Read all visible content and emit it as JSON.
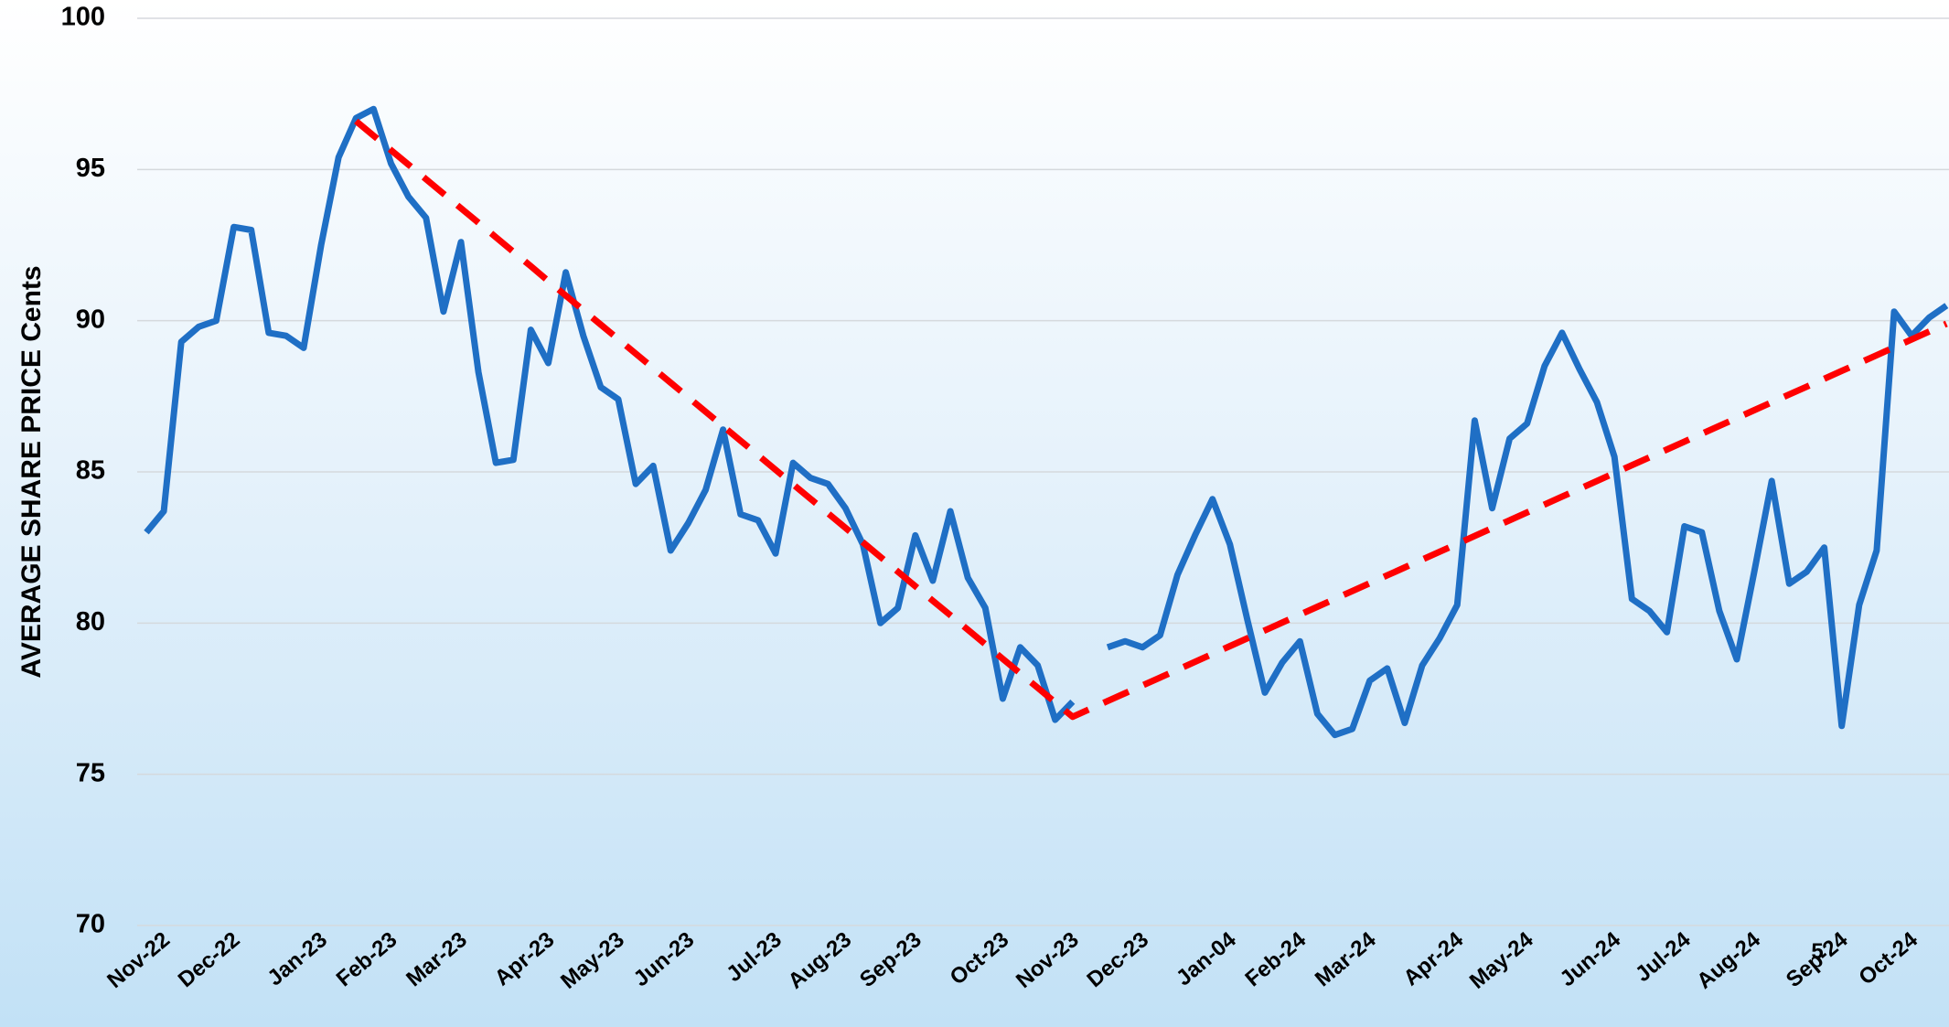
{
  "chart_data": {
    "type": "line",
    "y_label": "AVERAGE SHARE PRICE  Cents",
    "annotations": [
      "5"
    ],
    "categories": [
      null,
      "Nov-22",
      null,
      null,
      null,
      "Dec-22",
      null,
      null,
      null,
      null,
      "Jan-23",
      null,
      null,
      null,
      "Feb-23",
      null,
      null,
      null,
      "Mar-23",
      null,
      null,
      null,
      null,
      "Apr-23",
      null,
      null,
      null,
      "May-23",
      null,
      null,
      null,
      "Jun-23",
      null,
      null,
      null,
      null,
      "Jul-23",
      null,
      null,
      null,
      "Aug-23",
      null,
      null,
      null,
      "Sep-23",
      null,
      null,
      null,
      null,
      "Oct-23",
      null,
      null,
      null,
      "Nov-23",
      null,
      null,
      null,
      "Dec-23",
      null,
      null,
      null,
      null,
      "Jan-04",
      null,
      null,
      null,
      "Feb-24",
      null,
      null,
      null,
      "Mar-24",
      null,
      null,
      null,
      null,
      "Apr-24",
      null,
      null,
      null,
      "May-24",
      null,
      null,
      null,
      null,
      "Jun-24",
      null,
      null,
      null,
      "Jul-24",
      null,
      null,
      null,
      "Aug-24",
      null,
      null,
      null,
      null,
      "Sep-24",
      null,
      null,
      null,
      "Oct-24",
      null,
      null
    ],
    "series": [
      {
        "color": "#1f6fc5",
        "dashed": false,
        "values": [
          83.0,
          83.7,
          89.3,
          89.8,
          90.0,
          93.1,
          93.0,
          89.6,
          89.5,
          89.1,
          92.5,
          95.4,
          96.7,
          97.0,
          95.2,
          94.1,
          93.4,
          90.3,
          92.6,
          88.3,
          85.3,
          85.4,
          89.7,
          88.6,
          91.6,
          89.5,
          87.8,
          87.4,
          84.6,
          85.2,
          82.4,
          83.3,
          84.4,
          86.4,
          83.6,
          83.4,
          82.3,
          85.3,
          84.8,
          84.6,
          83.8,
          82.6,
          80.0,
          80.5,
          82.9,
          81.4,
          83.7,
          81.5,
          80.5,
          77.5,
          79.2,
          78.6,
          76.8,
          77.4,
          null,
          79.2,
          79.4,
          79.2,
          79.6,
          81.6,
          82.9,
          84.1,
          82.6,
          80.1,
          77.7,
          78.7,
          79.4,
          77.0,
          76.3,
          76.5,
          78.1,
          78.5,
          76.7,
          78.6,
          79.5,
          80.6,
          86.7,
          83.8,
          86.1,
          86.6,
          88.5,
          89.6,
          88.4,
          87.3,
          85.5,
          80.8,
          80.4,
          79.7,
          83.2,
          83.0,
          80.4,
          78.8,
          81.7,
          84.7,
          81.3,
          81.7,
          82.5,
          76.6,
          80.6,
          82.4,
          90.3,
          89.5,
          90.1,
          90.5
        ]
      },
      {
        "color": "#ff0000",
        "dashed": true,
        "values": [
          null,
          null,
          null,
          null,
          null,
          null,
          null,
          null,
          null,
          null,
          null,
          null,
          96.6,
          96.12,
          95.64,
          95.16,
          94.68,
          94.2,
          93.72,
          93.24,
          92.76,
          92.28,
          91.8,
          91.31,
          90.83,
          90.35,
          89.87,
          89.39,
          88.91,
          88.43,
          87.95,
          87.47,
          86.99,
          86.51,
          86.03,
          85.55,
          85.07,
          84.59,
          84.11,
          83.63,
          83.15,
          82.67,
          82.19,
          81.7,
          81.22,
          80.74,
          80.26,
          79.78,
          79.3,
          78.82,
          78.34,
          77.86,
          77.38,
          76.9,
          77.16,
          77.42,
          77.68,
          77.94,
          78.2,
          78.46,
          78.72,
          78.98,
          79.24,
          79.5,
          79.76,
          80.02,
          80.28,
          80.54,
          80.8,
          81.06,
          81.32,
          81.58,
          81.84,
          82.1,
          82.36,
          82.62,
          82.88,
          83.14,
          83.4,
          83.66,
          83.92,
          84.18,
          84.44,
          84.7,
          84.96,
          85.22,
          85.48,
          85.74,
          86.0,
          86.26,
          86.52,
          86.78,
          87.04,
          87.3,
          87.56,
          87.82,
          88.08,
          88.34,
          88.6,
          88.86,
          89.12,
          89.38,
          89.64,
          89.9
        ]
      }
    ],
    "ylim": [
      70,
      100
    ],
    "yticks": [
      70,
      75,
      80,
      85,
      90,
      95,
      100
    ],
    "grid": true
  }
}
